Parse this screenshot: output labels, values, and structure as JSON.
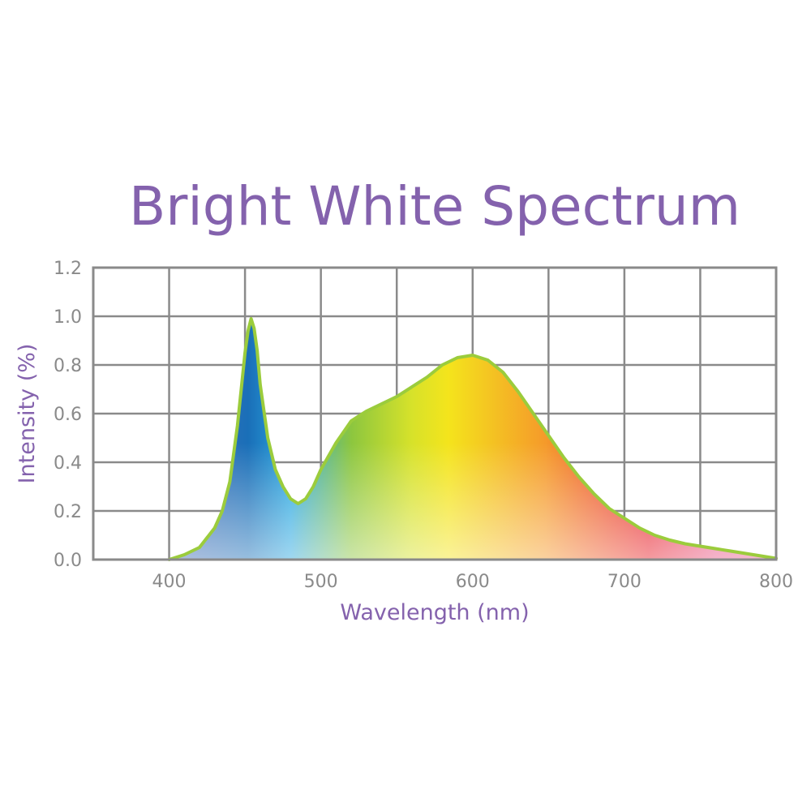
{
  "chart_data": {
    "type": "area",
    "title": "Bright White Spectrum",
    "xlabel": "Wavelength (nm)",
    "ylabel": "Intensity (%)",
    "xlim": [
      350,
      800
    ],
    "ylim": [
      0,
      1.2
    ],
    "x_ticks": [
      400,
      500,
      600,
      700,
      800
    ],
    "y_ticks": [
      "0.0",
      "0.2",
      "0.4",
      "0.6",
      "0.8",
      "1.0",
      "1.2"
    ],
    "grid": true,
    "x_grid_step": 50,
    "series": [
      {
        "x": [
          400,
          410,
          420,
          430,
          435,
          440,
          445,
          450,
          452,
          454,
          456,
          458,
          460,
          465,
          470,
          475,
          480,
          485,
          490,
          495,
          500,
          510,
          520,
          530,
          540,
          550,
          560,
          570,
          580,
          590,
          600,
          610,
          620,
          630,
          640,
          650,
          660,
          670,
          680,
          690,
          700,
          710,
          720,
          730,
          740,
          750,
          760,
          770,
          780,
          790,
          800
        ],
        "y": [
          0.0,
          0.02,
          0.05,
          0.13,
          0.2,
          0.32,
          0.55,
          0.85,
          0.94,
          0.99,
          0.95,
          0.86,
          0.72,
          0.5,
          0.37,
          0.3,
          0.25,
          0.23,
          0.25,
          0.3,
          0.37,
          0.48,
          0.57,
          0.61,
          0.64,
          0.67,
          0.71,
          0.75,
          0.8,
          0.83,
          0.84,
          0.82,
          0.77,
          0.69,
          0.6,
          0.51,
          0.42,
          0.34,
          0.27,
          0.21,
          0.17,
          0.13,
          0.1,
          0.08,
          0.065,
          0.055,
          0.045,
          0.035,
          0.025,
          0.015,
          0.005
        ]
      }
    ],
    "colors": {
      "outline": "#9bcc3c",
      "spectrum": [
        "#1a6fb8",
        "#2aa7e0",
        "#8cc63f",
        "#f4e41c",
        "#f59a2a",
        "#e8202a",
        "#e85a8a"
      ]
    }
  }
}
